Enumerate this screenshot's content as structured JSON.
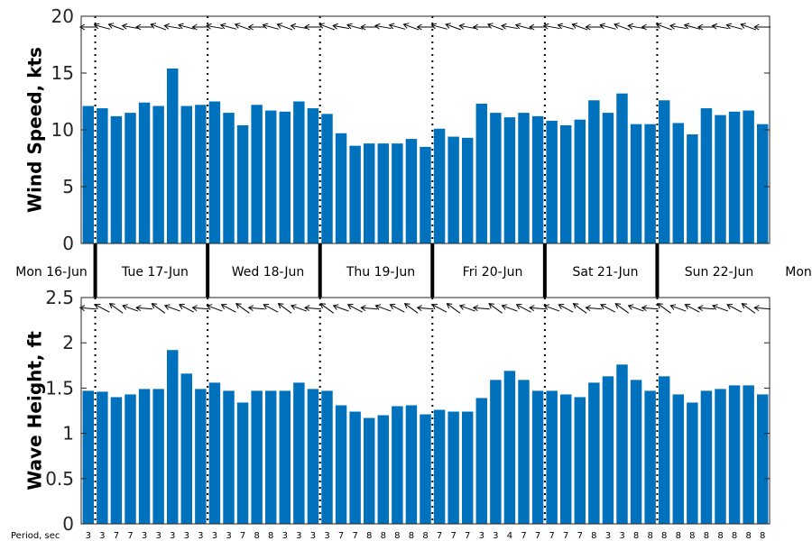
{
  "colors": {
    "bar": "#0072BD",
    "axis": "#262626",
    "text": "#000000",
    "divider": "#000000",
    "background": "#ffffff"
  },
  "chart_data": [
    {
      "type": "bar",
      "title": "",
      "ylabel": "Wind Speed, kts",
      "xlabel": "",
      "ylim": [
        0,
        20
      ],
      "yticks": [
        0,
        5,
        10,
        15,
        20
      ],
      "grid": false,
      "direction_arrows": true,
      "values": [
        12.1,
        11.9,
        11.2,
        11.5,
        12.4,
        12.1,
        15.4,
        12.1,
        12.2,
        12.5,
        11.5,
        10.4,
        12.2,
        11.7,
        11.6,
        12.5,
        11.9,
        11.4,
        9.7,
        8.6,
        8.8,
        8.8,
        8.8,
        9.2,
        8.5,
        10.1,
        9.4,
        9.3,
        12.3,
        11.5,
        11.1,
        11.5,
        11.2,
        10.8,
        10.4,
        10.9,
        12.6,
        11.5,
        13.2,
        10.5,
        10.5,
        12.6,
        10.6,
        9.6,
        11.9,
        11.3,
        11.6,
        11.7,
        10.5
      ]
    },
    {
      "type": "bar",
      "title": "",
      "ylabel": "Wave Height, ft",
      "xlabel": "",
      "ylim": [
        0,
        2.5
      ],
      "yticks": [
        "0",
        "0.5",
        "1",
        "1.5",
        "2",
        "2.5"
      ],
      "grid": false,
      "direction_arrows": true,
      "values": [
        1.47,
        1.46,
        1.4,
        1.43,
        1.49,
        1.49,
        1.92,
        1.66,
        1.49,
        1.56,
        1.47,
        1.34,
        1.47,
        1.47,
        1.47,
        1.56,
        1.49,
        1.47,
        1.31,
        1.24,
        1.17,
        1.2,
        1.3,
        1.31,
        1.21,
        1.26,
        1.24,
        1.24,
        1.39,
        1.59,
        1.69,
        1.59,
        1.47,
        1.47,
        1.43,
        1.4,
        1.56,
        1.63,
        1.76,
        1.59,
        1.47,
        1.63,
        1.43,
        1.34,
        1.47,
        1.49,
        1.53,
        1.53,
        1.43
      ],
      "period_label": "Period, sec",
      "periods": [
        "3",
        "3",
        "7",
        "7",
        "3",
        "3",
        "3",
        "3",
        "3",
        "3",
        "3",
        "7",
        "8",
        "8",
        "3",
        "3",
        "3",
        "3",
        "7",
        "7",
        "8",
        "8",
        "8",
        "8",
        "8",
        "7",
        "7",
        "7",
        "3",
        "3",
        "4",
        "7",
        "7",
        "7",
        "7",
        "7",
        "8",
        "3",
        "3",
        "8",
        "8",
        "8",
        "8",
        "8",
        "8",
        "8",
        "8",
        "8",
        "8"
      ]
    }
  ],
  "day_labels": [
    "Mon 16-Jun",
    "Tue 17-Jun",
    "Wed 18-Jun",
    "Thu 19-Jun",
    "Fri 20-Jun",
    "Sat 21-Jun",
    "Sun 22-Jun",
    "Mon"
  ],
  "arrow_icon": "wind-direction-arrow-icon"
}
